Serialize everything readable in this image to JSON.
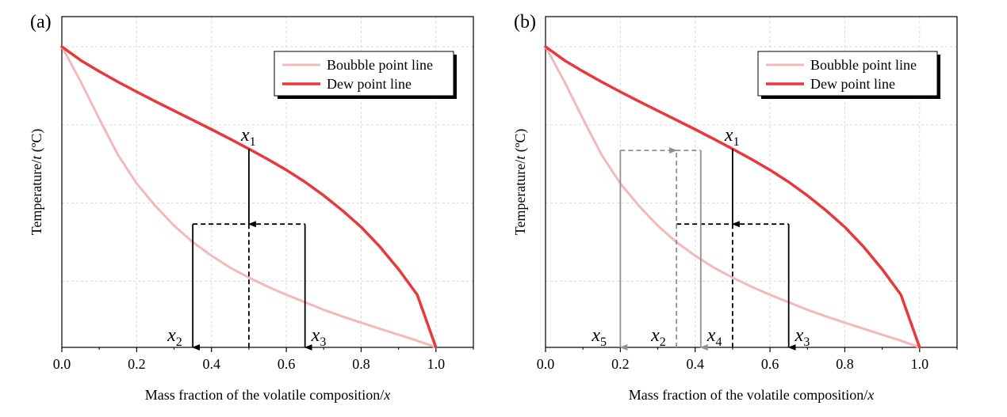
{
  "chart_data": [
    {
      "type": "line",
      "panel_label": "(a)",
      "xlabel_main": "Mass fraction of the volatile composition/",
      "xlabel_italic": "x",
      "ylabel_main": "Temperature/",
      "ylabel_italic": "t",
      "ylabel_unit": " (ºC)",
      "xlim": [
        0,
        1.1
      ],
      "ylim": [
        0,
        1.1
      ],
      "xticks": [
        "0.0",
        "0.2",
        "0.4",
        "0.6",
        "0.8",
        "1.0"
      ],
      "grid": true,
      "legend_position": "top-right",
      "series": [
        {
          "name": "Boubble point line",
          "color": "#f5b8b8",
          "x": [
            0,
            0.05,
            0.1,
            0.15,
            0.2,
            0.25,
            0.3,
            0.35,
            0.4,
            0.45,
            0.5,
            0.55,
            0.6,
            0.65,
            0.7,
            0.75,
            0.8,
            0.85,
            0.9,
            0.95,
            1.0
          ],
          "y": [
            1.0,
            0.885,
            0.76,
            0.64,
            0.545,
            0.47,
            0.405,
            0.35,
            0.305,
            0.265,
            0.232,
            0.202,
            0.175,
            0.15,
            0.125,
            0.103,
            0.082,
            0.062,
            0.042,
            0.022,
            0
          ]
        },
        {
          "name": "Dew point line",
          "color": "#e8383b",
          "x": [
            0,
            0.05,
            0.1,
            0.15,
            0.2,
            0.25,
            0.3,
            0.35,
            0.4,
            0.45,
            0.5,
            0.55,
            0.6,
            0.65,
            0.7,
            0.75,
            0.8,
            0.85,
            0.9,
            0.95,
            1.0
          ],
          "y": [
            1.0,
            0.955,
            0.918,
            0.883,
            0.85,
            0.818,
            0.787,
            0.756,
            0.725,
            0.693,
            0.66,
            0.626,
            0.59,
            0.55,
            0.505,
            0.455,
            0.4,
            0.335,
            0.26,
            0.175,
            0
          ]
        }
      ],
      "annotations": [
        {
          "label": "x",
          "sub": "1",
          "kind": "arrow",
          "x": 0.5,
          "y_from": 0.66,
          "y_to": 0.41,
          "color": "#000000",
          "dashed": false
        },
        {
          "label": "",
          "sub": "",
          "kind": "line",
          "x": [
            0.35,
            0.65
          ],
          "y": 0.41,
          "color": "#000000",
          "dashed": true
        },
        {
          "label": "x",
          "sub": "2",
          "kind": "arrow",
          "x": 0.35,
          "y_from": 0.41,
          "y_to": 0,
          "color": "#000000",
          "dashed": false
        },
        {
          "label": "",
          "sub": "",
          "kind": "vline",
          "x": 0.5,
          "y_from": 0.41,
          "y_to": 0,
          "color": "#000000",
          "dashed": true
        },
        {
          "label": "x",
          "sub": "3",
          "kind": "arrow",
          "x": 0.65,
          "y_from": 0.41,
          "y_to": 0,
          "color": "#000000",
          "dashed": false
        }
      ]
    },
    {
      "type": "line",
      "panel_label": "(b)",
      "xlabel_main": "Mass fraction of the volatile composition/",
      "xlabel_italic": "x",
      "ylabel_main": "Temperature/",
      "ylabel_italic": "t",
      "ylabel_unit": " (ºC)",
      "xlim": [
        0,
        1.1
      ],
      "ylim": [
        0,
        1.1
      ],
      "xticks": [
        "0.0",
        "0.2",
        "0.4",
        "0.6",
        "0.8",
        "1.0"
      ],
      "grid": true,
      "legend_position": "top-right",
      "series": [
        {
          "name": "Boubble point line",
          "color": "#f5b8b8",
          "x": [
            0,
            0.05,
            0.1,
            0.15,
            0.2,
            0.25,
            0.3,
            0.35,
            0.4,
            0.45,
            0.5,
            0.55,
            0.6,
            0.65,
            0.7,
            0.75,
            0.8,
            0.85,
            0.9,
            0.95,
            1.0
          ],
          "y": [
            1.0,
            0.885,
            0.76,
            0.64,
            0.545,
            0.47,
            0.405,
            0.35,
            0.305,
            0.265,
            0.232,
            0.202,
            0.175,
            0.15,
            0.125,
            0.103,
            0.082,
            0.062,
            0.042,
            0.022,
            0
          ]
        },
        {
          "name": "Dew point line",
          "color": "#e8383b",
          "x": [
            0,
            0.05,
            0.1,
            0.15,
            0.2,
            0.25,
            0.3,
            0.35,
            0.4,
            0.45,
            0.5,
            0.55,
            0.6,
            0.65,
            0.7,
            0.75,
            0.8,
            0.85,
            0.9,
            0.95,
            1.0
          ],
          "y": [
            1.0,
            0.955,
            0.918,
            0.883,
            0.85,
            0.818,
            0.787,
            0.756,
            0.725,
            0.693,
            0.66,
            0.626,
            0.59,
            0.55,
            0.505,
            0.455,
            0.4,
            0.335,
            0.26,
            0.175,
            0
          ]
        }
      ],
      "annotations": [
        {
          "label": "x",
          "sub": "1",
          "kind": "arrow",
          "x": 0.5,
          "y_from": 0.66,
          "y_to": 0.41,
          "color": "#000000",
          "dashed": false
        },
        {
          "label": "",
          "sub": "",
          "kind": "line",
          "x": [
            0.35,
            0.65
          ],
          "y": 0.41,
          "color": "#000000",
          "dashed": true
        },
        {
          "label": "",
          "sub": "",
          "kind": "vline",
          "x": 0.5,
          "y_from": 0.41,
          "y_to": 0,
          "color": "#000000",
          "dashed": true
        },
        {
          "label": "x",
          "sub": "3",
          "kind": "arrow",
          "x": 0.65,
          "y_from": 0.41,
          "y_to": 0,
          "color": "#000000",
          "dashed": false
        },
        {
          "label": "x",
          "sub": "2",
          "kind": "arrow",
          "x": 0.35,
          "y_from": 0,
          "y_to": 0.655,
          "color": "#909090",
          "dashed": true
        },
        {
          "label": "",
          "sub": "",
          "kind": "line",
          "x": [
            0.2,
            0.415
          ],
          "y": 0.655,
          "color": "#909090",
          "dashed": true
        },
        {
          "label": "x",
          "sub": "5",
          "kind": "arrow",
          "x": 0.2,
          "y_from": 0.655,
          "y_to": 0,
          "color": "#909090",
          "dashed": false
        },
        {
          "label": "x",
          "sub": "4",
          "kind": "arrow",
          "x": 0.415,
          "y_from": 0.655,
          "y_to": 0,
          "color": "#909090",
          "dashed": false
        }
      ]
    }
  ]
}
